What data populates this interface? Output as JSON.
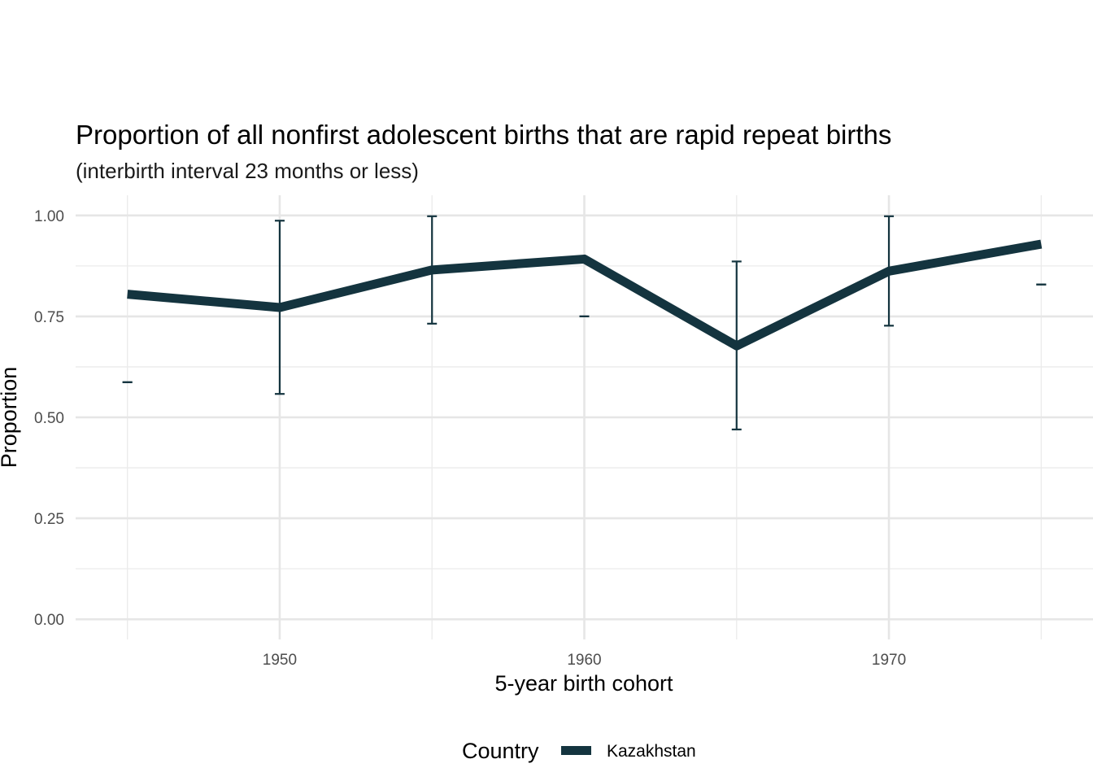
{
  "chart_data": {
    "type": "line",
    "title": "Proportion of all nonfirst adolescent births that are rapid repeat births",
    "subtitle": "(interbirth interval 23 months or less)",
    "xlabel": "5-year birth cohort",
    "ylabel": "Proportion",
    "xlim": [
      1943.3,
      1976.7
    ],
    "ylim": [
      -0.05,
      1.05
    ],
    "x_ticks": [
      1950,
      1960,
      1970
    ],
    "x_tick_labels": [
      "1950",
      "1960",
      "1970"
    ],
    "x_minor_ticks": [
      1945,
      1955,
      1965,
      1975
    ],
    "y_ticks": [
      0,
      0.25,
      0.5,
      0.75,
      1.0
    ],
    "y_tick_labels": [
      "0.00",
      "0.25",
      "0.50",
      "0.75",
      "1.00"
    ],
    "y_minor_ticks": [
      0.125,
      0.375,
      0.625,
      0.875
    ],
    "grid": true,
    "legend": {
      "title": "Country",
      "position": "bottom"
    },
    "series": [
      {
        "name": "Kazakhstan",
        "color": "#14343f",
        "x": [
          1945,
          1950,
          1955,
          1960,
          1965,
          1970,
          1975
        ],
        "y": [
          0.805,
          0.772,
          0.865,
          0.892,
          0.677,
          0.862,
          0.929
        ],
        "error_lower": [
          0.587,
          0.558,
          0.732,
          0.75,
          0.47,
          0.727,
          0.829
        ],
        "error_upper": [
          0.587,
          0.987,
          0.998,
          0.75,
          0.886,
          0.998,
          0.829
        ]
      }
    ]
  }
}
